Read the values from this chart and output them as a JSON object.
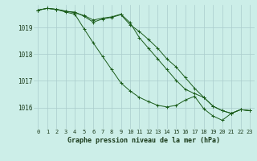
{
  "title": "Graphe pression niveau de la mer (hPa)",
  "bg_color": "#cceee8",
  "grid_color": "#aacccc",
  "line_color": "#1a5c1a",
  "xlim": [
    -0.5,
    23.5
  ],
  "ylim": [
    1015.2,
    1019.85
  ],
  "yticks": [
    1016,
    1017,
    1018,
    1019
  ],
  "xticks": [
    0,
    1,
    2,
    3,
    4,
    5,
    6,
    7,
    8,
    9,
    10,
    11,
    12,
    13,
    14,
    15,
    16,
    17,
    18,
    19,
    20,
    21,
    22,
    23
  ],
  "tick_fontsize": 5,
  "xlabel_fontsize": 6,
  "series": [
    [
      1019.65,
      1019.72,
      1019.68,
      1019.6,
      1019.58,
      1019.42,
      1019.2,
      1019.32,
      1019.38,
      1019.48,
      1019.1,
      1018.85,
      1018.55,
      1018.22,
      1017.82,
      1017.52,
      1017.12,
      1016.72,
      1016.38,
      1016.05,
      1015.88,
      1015.78,
      1015.92,
      1015.88
    ],
    [
      1019.65,
      1019.72,
      1019.68,
      1019.58,
      1019.5,
      1018.95,
      1018.42,
      1017.92,
      1017.42,
      1016.92,
      1016.62,
      1016.38,
      1016.22,
      1016.08,
      1016.02,
      1016.08,
      1016.28,
      1016.42,
      1015.95,
      1015.68,
      1015.52,
      1015.78,
      1015.92,
      1015.88
    ],
    [
      1019.65,
      1019.72,
      1019.68,
      1019.62,
      1019.55,
      1019.45,
      1019.28,
      1019.35,
      1019.4,
      1019.5,
      1019.18,
      1018.62,
      1018.22,
      1017.82,
      1017.42,
      1017.02,
      1016.68,
      1016.52,
      1016.38,
      1016.05,
      1015.88,
      1015.78,
      1015.92,
      1015.88
    ]
  ]
}
